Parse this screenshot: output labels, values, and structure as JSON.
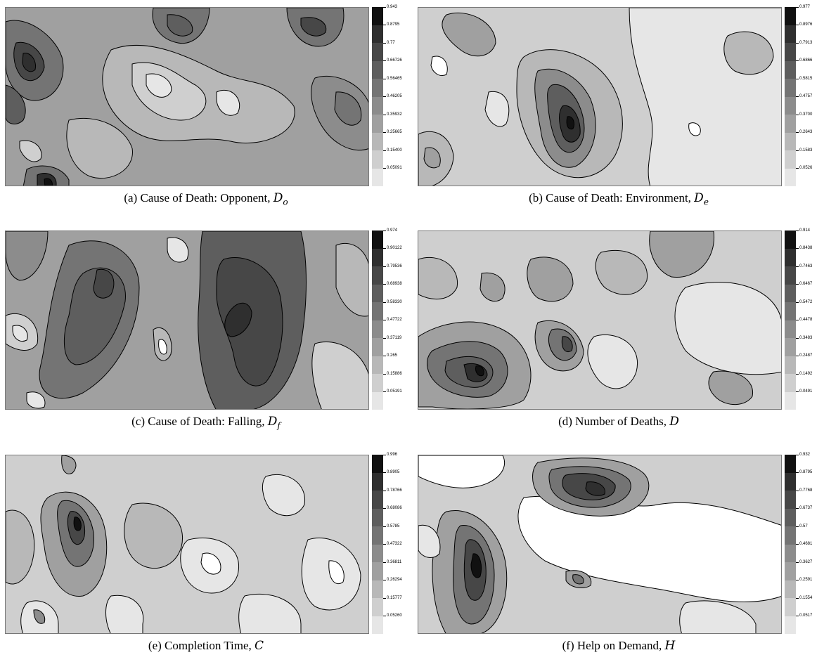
{
  "figure": {
    "colors": [
      "#e6e6e6",
      "#cfcfcf",
      "#b8b8b8",
      "#a0a0a0",
      "#8c8c8c",
      "#747474",
      "#5e5e5e",
      "#474747",
      "#2f2f2f",
      "#111111"
    ],
    "panels": [
      {
        "id": "a",
        "caption_label": "(a)",
        "caption_text": "Cause of Death: Opponent,",
        "symbol": "D",
        "subscript": "o",
        "colorbar_labels": [
          "0.943",
          "0.8795",
          "0.77",
          "0.66726",
          "0.56465",
          "0.46205",
          "0.35932",
          "0.25665",
          "0.15400",
          "0.05091"
        ]
      },
      {
        "id": "b",
        "caption_label": "(b)",
        "caption_text": "Cause of Death: Environment,",
        "symbol": "D",
        "subscript": "e",
        "colorbar_labels": [
          "0.977",
          "0.8976",
          "0.7913",
          "0.6866",
          "0.5815",
          "0.4757",
          "0.3700",
          "0.2643",
          "0.1583",
          "0.0526"
        ]
      },
      {
        "id": "c",
        "caption_label": "(c)",
        "caption_text": "Cause of Death: Falling,",
        "symbol": "D",
        "subscript": "f",
        "colorbar_labels": [
          "0.974",
          "0.90122",
          "0.79536",
          "0.68938",
          "0.58330",
          "0.47722",
          "0.37119",
          "0.265",
          "0.15886",
          "0.05191"
        ]
      },
      {
        "id": "d",
        "caption_label": "(d)",
        "caption_text": "Number of Deaths,",
        "symbol": "D",
        "subscript": "",
        "colorbar_labels": [
          "0.914",
          "0.8438",
          "0.7463",
          "0.6467",
          "0.5472",
          "0.4478",
          "0.3483",
          "0.2487",
          "0.1492",
          "0.0491"
        ]
      },
      {
        "id": "e",
        "caption_label": "(e)",
        "caption_text": "Completion Time,",
        "symbol": "C",
        "subscript": "",
        "colorbar_labels": [
          "0.996",
          "0.8905",
          "0.78766",
          "0.68086",
          "0.5785",
          "0.47322",
          "0.36811",
          "0.26294",
          "0.15777",
          "0.05260"
        ]
      },
      {
        "id": "f",
        "caption_label": "(f)",
        "caption_text": "Help on Demand,",
        "symbol": "H",
        "subscript": "",
        "colorbar_labels": [
          "0.932",
          "0.8795",
          "0.7768",
          "0.6737",
          "0.57",
          "0.4681",
          "0.3627",
          "0.2591",
          "0.1554",
          "0.0517"
        ]
      }
    ]
  }
}
